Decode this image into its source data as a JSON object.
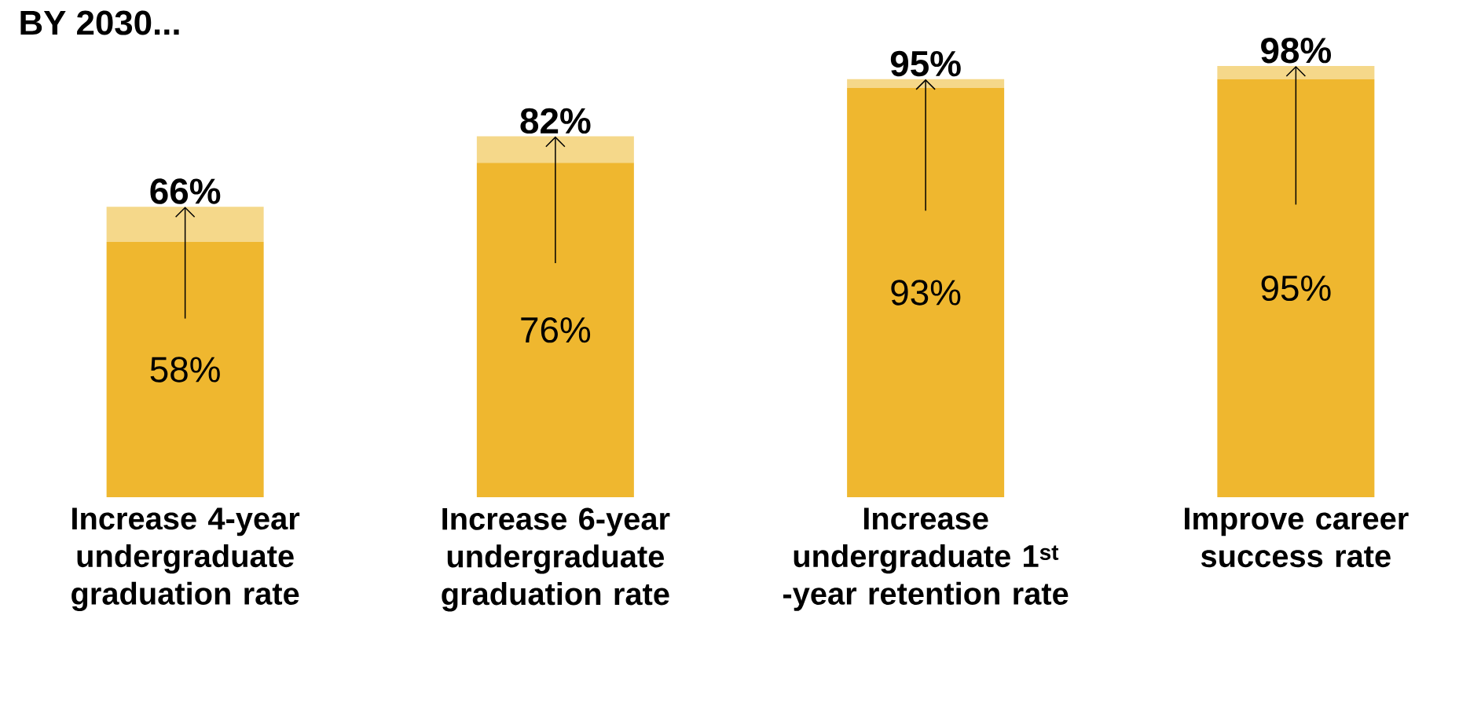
{
  "chart_data": {
    "type": "bar",
    "title": "BY 2030...",
    "categories": [
      "Increase 4-year undergraduate graduation rate",
      "Increase 6-year undergraduate graduation rate",
      "Increase undergraduate 1$^{st}$ -year retention rate",
      "Improve career success rate"
    ],
    "stacked": true,
    "series": [
      {
        "color": "#efb72f",
        "values": [
          58,
          76,
          93,
          95
        ],
        "value_labels": [
          "58%",
          "76%",
          "93%",
          "95%"
        ]
      },
      {
        "color": "#f5d88a",
        "values": [
          8,
          6,
          2,
          3
        ]
      }
    ],
    "annotations": [
      {
        "text": "66%",
        "x": "Increase 4-year undergraduate graduation rate",
        "y": 66
      },
      {
        "text": "82%",
        "x": "Increase 6-year undergraduate graduation rate",
        "y": 82
      },
      {
        "text": "95%",
        "x": "Increase undergraduate 1$^{st}$ -year retention rate",
        "y": 95
      },
      {
        "text": "98%",
        "x": "Improve career success rate",
        "y": 98
      }
    ]
  }
}
